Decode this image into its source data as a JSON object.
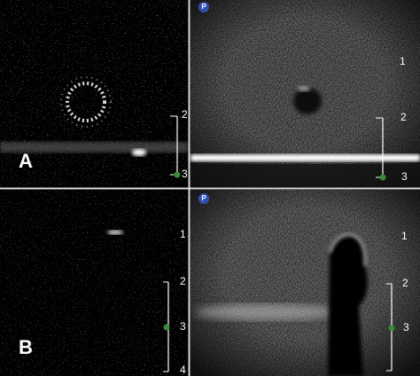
{
  "row_a": {
    "label": "A",
    "left_scale": [
      2,
      3
    ],
    "right_scale": [
      1,
      2,
      3
    ],
    "probe_marker": "P"
  },
  "row_b": {
    "label": "B",
    "left_scale": [
      1,
      2,
      3,
      4
    ],
    "right_scale": [
      1,
      2,
      3
    ],
    "probe_marker": "P"
  }
}
